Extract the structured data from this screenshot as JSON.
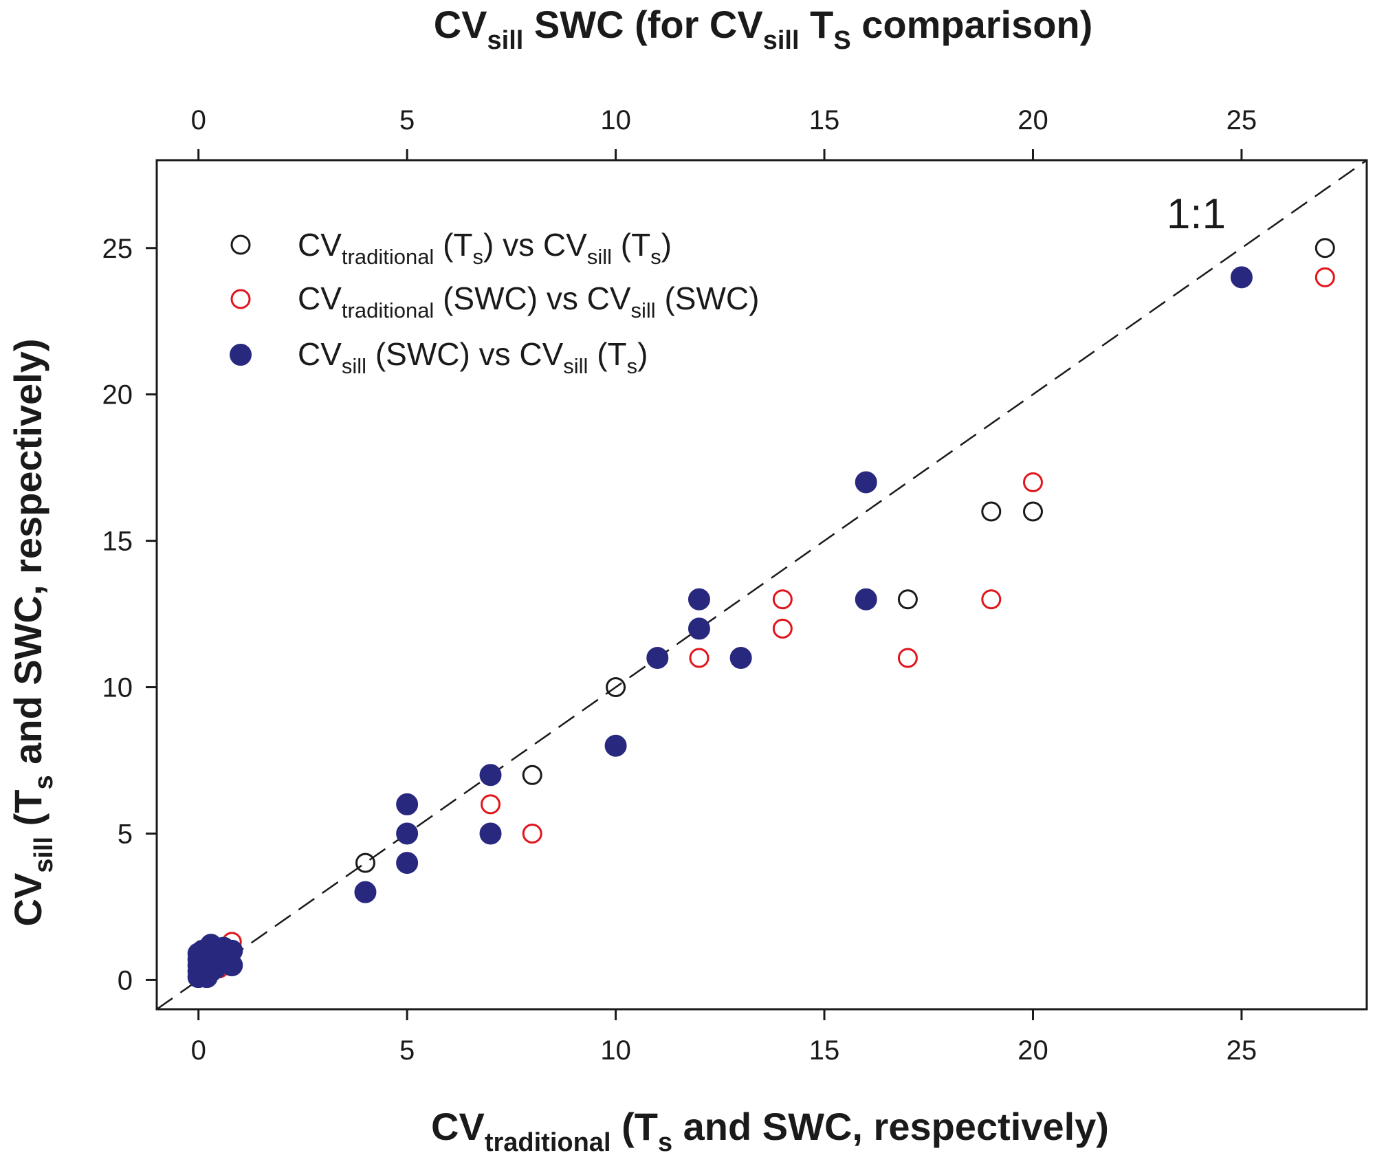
{
  "chart_data": {
    "type": "scatter",
    "title": "",
    "top_axis_title": {
      "base": "CV",
      "sub1": "sill",
      "mid": " SWC (for CV",
      "sub2": "sill",
      "mid2": " T",
      "sub3": "S",
      "tail": " comparison)"
    },
    "x_axis_title": {
      "base": "CV",
      "sub": "traditional",
      "mid": " (T",
      "sub2": "s",
      "tail": " and SWC, respectively)"
    },
    "y_axis_title": {
      "base": "CV",
      "sub": "sill",
      "mid": " (T",
      "sub2": "s",
      "tail": " and SWC, respectively)"
    },
    "xlim": [
      -1,
      28
    ],
    "ylim": [
      -1,
      28
    ],
    "x_ticks": [
      0,
      5,
      10,
      15,
      20,
      25
    ],
    "y_ticks": [
      0,
      5,
      10,
      15,
      20,
      25
    ],
    "top_ticks": [
      0,
      5,
      10,
      15,
      20,
      25
    ],
    "reference_line": {
      "label": "1:1",
      "style": "dashed"
    },
    "legend_position": "top-left",
    "series": [
      {
        "name": "CVtraditional (Ts) vs CVsill (Ts)",
        "legend_parts": [
          "CV",
          "traditional",
          " (T",
          "s",
          ") vs CV",
          "sill",
          " (T",
          "s",
          ")"
        ],
        "marker": "open-circle",
        "color": "#1a1a1a",
        "points": [
          [
            4,
            4
          ],
          [
            8,
            7
          ],
          [
            10,
            10
          ],
          [
            17,
            13
          ],
          [
            19,
            16
          ],
          [
            20,
            16
          ],
          [
            27,
            25
          ],
          [
            0.2,
            0.6
          ],
          [
            0.5,
            0.9
          ]
        ]
      },
      {
        "name": "CVtraditional (SWC) vs CVsill (SWC)",
        "legend_parts": [
          "CV",
          "traditional",
          " (SWC) vs CV",
          "sill",
          " (SWC)"
        ],
        "marker": "open-circle",
        "color": "#e0161d",
        "points": [
          [
            7,
            6
          ],
          [
            8,
            5
          ],
          [
            12,
            11
          ],
          [
            14,
            13
          ],
          [
            14,
            12
          ],
          [
            17,
            11
          ],
          [
            19,
            13
          ],
          [
            20,
            17
          ],
          [
            27,
            24
          ],
          [
            0.8,
            1.3
          ],
          [
            0.5,
            0.4
          ]
        ]
      },
      {
        "name": "CVsill (SWC) vs CVsill (Ts)",
        "legend_parts": [
          "CV",
          "sill",
          " (SWC) vs CV",
          "sill",
          " (T",
          "s",
          ")"
        ],
        "marker": "filled-circle",
        "color": "#28287f",
        "points": [
          [
            4,
            3
          ],
          [
            5,
            6
          ],
          [
            5,
            5
          ],
          [
            5,
            4
          ],
          [
            7,
            7
          ],
          [
            7,
            5
          ],
          [
            10,
            8
          ],
          [
            11,
            11
          ],
          [
            12,
            13
          ],
          [
            12,
            12
          ],
          [
            13,
            11
          ],
          [
            16,
            17
          ],
          [
            16,
            13
          ],
          [
            25,
            24
          ],
          [
            0,
            0.1
          ],
          [
            0,
            0.3
          ],
          [
            0,
            0.5
          ],
          [
            0,
            0.7
          ],
          [
            0,
            0.9
          ],
          [
            0.1,
            0.2
          ],
          [
            0.1,
            0.6
          ],
          [
            0.1,
            1.0
          ],
          [
            0.2,
            0.4
          ],
          [
            0.2,
            0.8
          ],
          [
            0.3,
            1.2
          ],
          [
            0.3,
            0.3
          ],
          [
            0.4,
            0.7
          ],
          [
            0.4,
            1.0
          ],
          [
            0.5,
            0.6
          ],
          [
            0.6,
            0.9
          ],
          [
            0.7,
            0.7
          ],
          [
            0.8,
            0.5
          ],
          [
            0.8,
            1.0
          ],
          [
            0.2,
            0.1
          ],
          [
            0.4,
            0.4
          ],
          [
            0.6,
            1.1
          ]
        ]
      }
    ]
  }
}
